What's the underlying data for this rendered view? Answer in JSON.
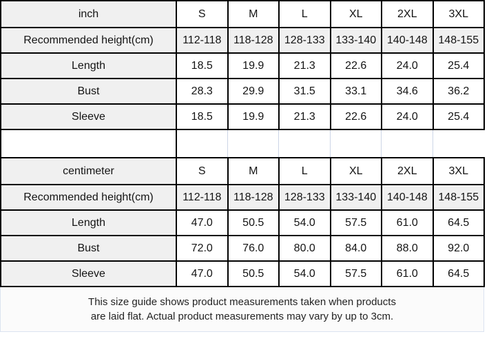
{
  "colors": {
    "table_border": "#000000",
    "label_cell_bg": "#f0f0f0",
    "shaded_row_bg": "#f0f0f0",
    "cell_bg": "#ffffff",
    "spacer_gridline": "#ccd5e6",
    "text": "#141414",
    "footer_text": "#232323"
  },
  "chart_data": [
    {
      "type": "table",
      "unit": "inch",
      "header": [
        "inch",
        "S",
        "M",
        "L",
        "XL",
        "2XL",
        "3XL"
      ],
      "rows": [
        [
          "Recommended height(cm)",
          "112-118",
          "118-128",
          "128-133",
          "133-140",
          "140-148",
          "148-155"
        ],
        [
          "Length",
          "18.5",
          "19.9",
          "21.3",
          "22.6",
          "24.0",
          "25.4"
        ],
        [
          "Bust",
          "28.3",
          "29.9",
          "31.5",
          "33.1",
          "34.6",
          "36.2"
        ],
        [
          "Sleeve",
          "18.5",
          "19.9",
          "21.3",
          "22.6",
          "24.0",
          "25.4"
        ]
      ],
      "shaded_row_indices": [
        0
      ]
    },
    {
      "type": "table",
      "unit": "centimeter",
      "header": [
        "centimeter",
        "S",
        "M",
        "L",
        "XL",
        "2XL",
        "3XL"
      ],
      "rows": [
        [
          "Recommended height(cm)",
          "112-118",
          "118-128",
          "128-133",
          "133-140",
          "140-148",
          "148-155"
        ],
        [
          "Length",
          "47.0",
          "50.5",
          "54.0",
          "57.5",
          "61.0",
          "64.5"
        ],
        [
          "Bust",
          "72.0",
          "76.0",
          "80.0",
          "84.0",
          "88.0",
          "92.0"
        ],
        [
          "Sleeve",
          "47.0",
          "50.5",
          "54.0",
          "57.5",
          "61.0",
          "64.5"
        ]
      ],
      "shaded_row_indices": [
        0
      ]
    }
  ],
  "footer": {
    "line1": "This size guide shows product measurements taken when products",
    "line2": "are laid flat. Actual product measurements may vary by up to 3cm."
  }
}
